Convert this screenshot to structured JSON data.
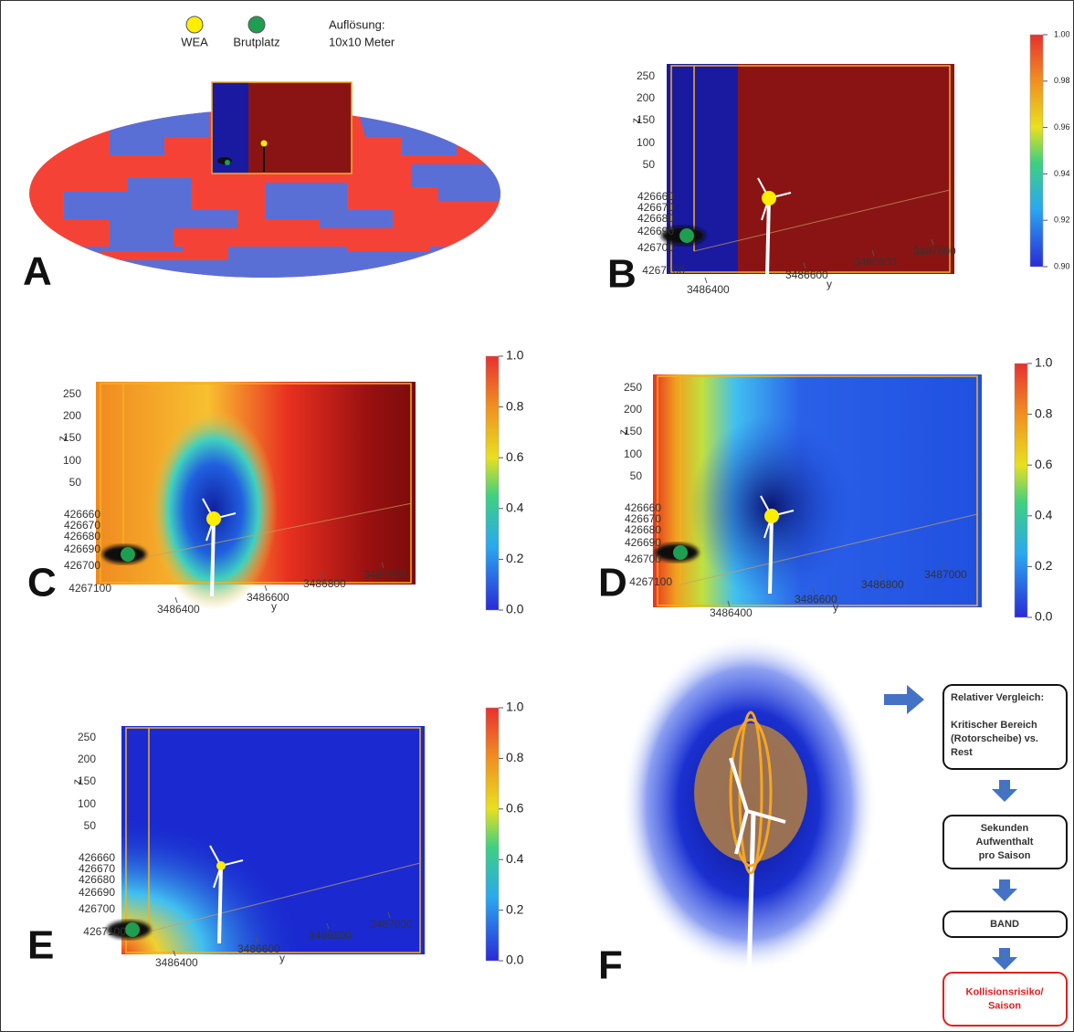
{
  "legend": [
    "WEA",
    "Brutplatz"
  ],
  "resolution": [
    "Auflösung:",
    "10x10 Meter"
  ],
  "axes": {
    "z_label": "z",
    "z_ticks": [
      "250",
      "200",
      "150",
      "100",
      "50"
    ],
    "x_ticks": [
      "426660",
      "426670",
      "426680",
      "426690",
      "426700",
      "4267100"
    ],
    "y_ticks": [
      "3486400",
      "3486600",
      "3486800",
      "3487000"
    ],
    "y_label": "y"
  },
  "panels": [
    {
      "letter": "A"
    },
    {
      "letter": "B",
      "colorbar": [
        "1.00",
        "0.98",
        "0.96",
        "0.94",
        "0.92",
        "0.90"
      ]
    },
    {
      "letter": "C",
      "colorbar": [
        "1.0",
        "0.8",
        "0.6",
        "0.4",
        "0.2",
        "0.0"
      ]
    },
    {
      "letter": "D",
      "colorbar": [
        "1.0",
        "0.8",
        "0.6",
        "0.4",
        "0.2",
        "0.0"
      ]
    },
    {
      "letter": "E",
      "colorbar": [
        "1.0",
        "0.8",
        "0.6",
        "0.4",
        "0.2",
        "0.0"
      ]
    },
    {
      "letter": "F"
    }
  ],
  "flow": [
    {
      "title": "Relativer Vergleich:",
      "lines": [
        "Kritischer Bereich",
        "(Rotorscheibe) vs.",
        "Rest"
      ]
    },
    {
      "lines": [
        "Sekunden",
        "Aufwenthalt",
        "pro Saison"
      ]
    },
    {
      "lines": [
        "BAND"
      ]
    },
    {
      "lines": [
        "Kollisionsrisiko/",
        "Saison"
      ]
    }
  ]
}
